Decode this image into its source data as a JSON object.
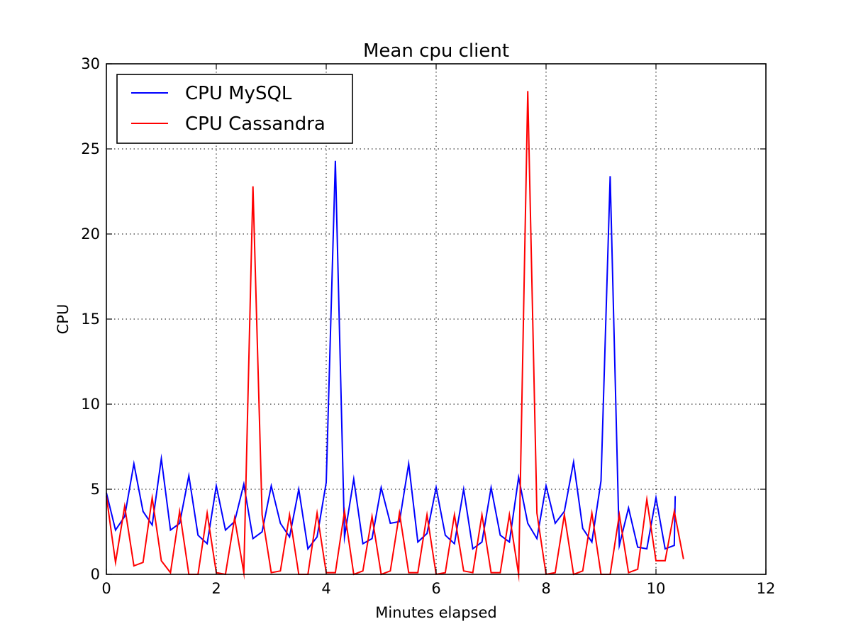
{
  "chart_data": {
    "type": "line",
    "title": "Mean cpu client",
    "xlabel": "Minutes elapsed",
    "ylabel": "CPU",
    "xlim": [
      0,
      12
    ],
    "ylim": [
      0,
      30
    ],
    "xticks": [
      "0",
      "2",
      "4",
      "6",
      "8",
      "10",
      "12"
    ],
    "yticks": [
      "0",
      "5",
      "10",
      "15",
      "20",
      "25",
      "30"
    ],
    "grid": true,
    "legend_position": "top-left",
    "series": [
      {
        "name": "CPU MySQL",
        "color": "#0000ff",
        "x": [
          0,
          0.167,
          0.333,
          0.5,
          0.667,
          0.833,
          1.0,
          1.167,
          1.333,
          1.5,
          1.667,
          1.833,
          2.0,
          2.167,
          2.333,
          2.5,
          2.667,
          2.833,
          3.0,
          3.167,
          3.333,
          3.5,
          3.667,
          3.833,
          4.0,
          4.167,
          4.333,
          4.5,
          4.667,
          4.833,
          5.0,
          5.167,
          5.333,
          5.5,
          5.667,
          5.833,
          6.0,
          6.167,
          6.333,
          6.5,
          6.667,
          6.833,
          7.0,
          7.167,
          7.333,
          7.5,
          7.667,
          7.833,
          8.0,
          8.167,
          8.333,
          8.5,
          8.667,
          8.833,
          9.0,
          9.167,
          9.333,
          9.5,
          9.667,
          9.833,
          10.0,
          10.167,
          10.333,
          10.35
        ],
        "y": [
          4.8,
          2.6,
          3.4,
          6.5,
          3.7,
          2.9,
          6.8,
          2.6,
          3.0,
          5.8,
          2.3,
          1.8,
          5.2,
          2.6,
          3.1,
          5.3,
          2.1,
          2.5,
          5.2,
          3.0,
          2.2,
          5.0,
          1.5,
          2.2,
          5.4,
          24.3,
          2.2,
          5.6,
          1.8,
          2.1,
          5.1,
          3.0,
          3.1,
          6.5,
          1.9,
          2.4,
          5.1,
          2.3,
          1.8,
          5.0,
          1.5,
          1.9,
          5.1,
          2.3,
          1.9,
          5.7,
          3.0,
          2.1,
          5.2,
          3.0,
          3.7,
          6.6,
          2.7,
          1.9,
          5.5,
          23.4,
          1.7,
          3.9,
          1.6,
          1.5,
          4.5,
          1.5,
          1.7,
          4.6
        ]
      },
      {
        "name": "CPU Cassandra",
        "color": "#ff0000",
        "x": [
          0,
          0.167,
          0.333,
          0.5,
          0.667,
          0.833,
          1.0,
          1.167,
          1.333,
          1.5,
          1.667,
          1.833,
          2.0,
          2.167,
          2.333,
          2.5,
          2.667,
          2.833,
          3.0,
          3.167,
          3.333,
          3.5,
          3.667,
          3.833,
          4.0,
          4.167,
          4.333,
          4.5,
          4.667,
          4.833,
          5.0,
          5.167,
          5.333,
          5.5,
          5.667,
          5.833,
          6.0,
          6.167,
          6.333,
          6.5,
          6.667,
          6.833,
          7.0,
          7.167,
          7.333,
          7.5,
          7.667,
          7.833,
          8.0,
          8.167,
          8.333,
          8.5,
          8.667,
          8.833,
          9.0,
          9.167,
          9.333,
          9.5,
          9.667,
          9.833,
          10.0,
          10.167,
          10.333,
          10.5
        ],
        "y": [
          4.6,
          0.7,
          4.0,
          0.5,
          0.7,
          4.5,
          0.8,
          0.1,
          3.7,
          0.0,
          0.0,
          3.6,
          0.1,
          0.0,
          3.3,
          0.1,
          22.8,
          3.5,
          0.1,
          0.2,
          3.5,
          0.0,
          0.0,
          3.6,
          0.1,
          0.1,
          3.7,
          0.0,
          0.2,
          3.4,
          0.0,
          0.2,
          3.6,
          0.1,
          0.1,
          3.5,
          0.0,
          0.1,
          3.5,
          0.2,
          0.1,
          3.5,
          0.1,
          0.1,
          3.5,
          0.0,
          28.4,
          3.6,
          0.0,
          0.1,
          3.5,
          0.0,
          0.2,
          3.6,
          0.0,
          0.0,
          3.5,
          0.1,
          0.3,
          4.4,
          0.8,
          0.8,
          3.7,
          0.9
        ]
      }
    ]
  }
}
